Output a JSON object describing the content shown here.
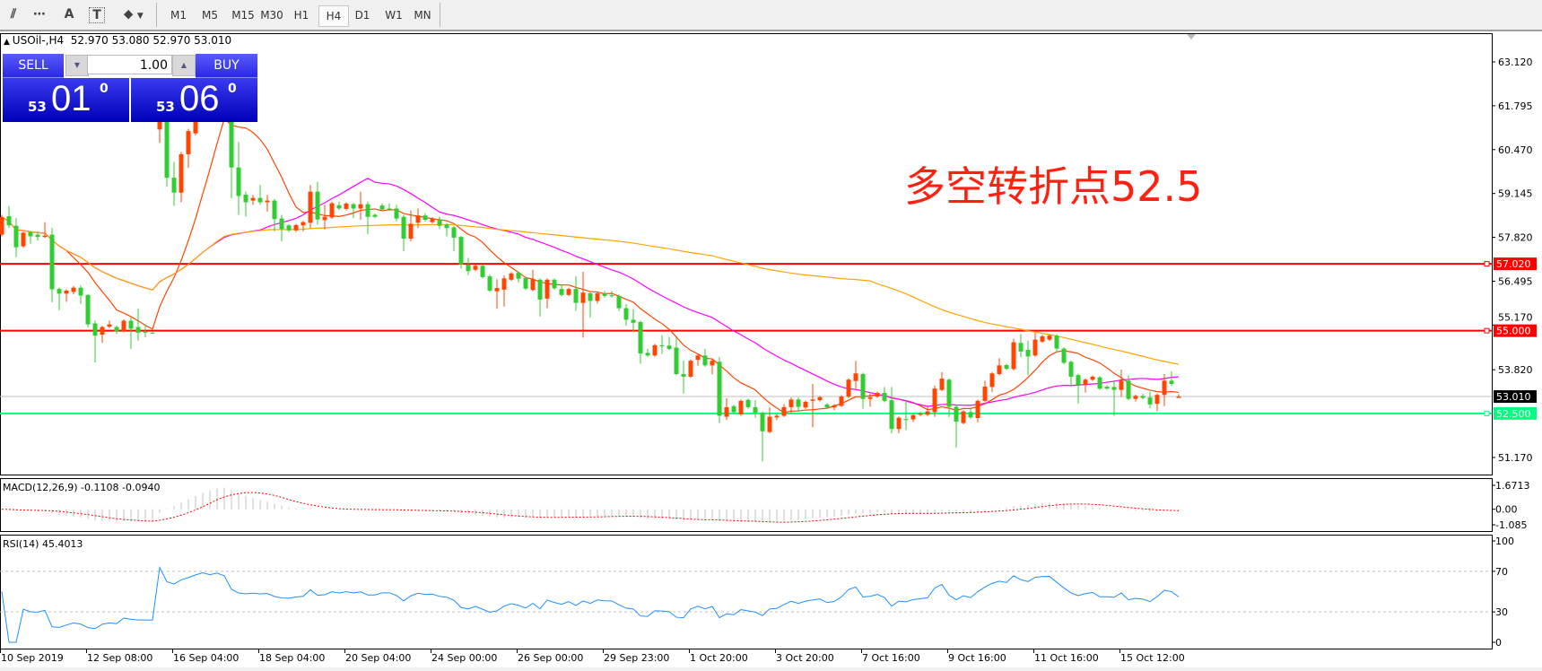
{
  "toolbar": {
    "icons": [
      "elliott-wave-icon",
      "fibonacci-fan-icon",
      "text-icon",
      "text-label-icon",
      "arrows-icon"
    ],
    "icon_glyphs": [
      "⫽",
      "⋯",
      "A",
      "T",
      "⬥"
    ],
    "timeframes": [
      "M1",
      "M5",
      "M15",
      "M30",
      "H1",
      "H4",
      "D1",
      "W1",
      "MN"
    ],
    "active_timeframe": "H4"
  },
  "header": {
    "symbol": "USOil-,H4",
    "ohlc": "52.970 53.080 52.970 53.010"
  },
  "trade_panel": {
    "sell_label": "SELL",
    "buy_label": "BUY",
    "lot": "1.00",
    "sell_price_small": "53",
    "sell_price_big": "01",
    "sell_price_sup": "0",
    "buy_price_small": "53",
    "buy_price_big": "06",
    "buy_price_sup": "0"
  },
  "annotation": "多空转折点52.5",
  "colors": {
    "bull": "#ff4500",
    "bear": "#32cd32",
    "ma_fast": "#ff4500",
    "ma_mid": "#ff00ff",
    "ma_slow": "#ffa500",
    "level_red": "#ff0000",
    "level_green": "#00ff7f",
    "current": "#c0c0c0",
    "macd_hist": "#c0c0c0",
    "macd_signal": "#ff0000",
    "rsi": "#1e90ff"
  },
  "chart_data": {
    "type": "candlestick",
    "symbol": "USOil-",
    "timeframe": "H4",
    "price_ticks": [
      "63.120",
      "61.795",
      "60.470",
      "59.145",
      "57.820",
      "56.495",
      "55.170",
      "53.820",
      "51.170"
    ],
    "ylim": [
      50.6,
      64.0
    ],
    "levels": [
      {
        "value": 57.02,
        "label": "57.020",
        "color": "#ff0000"
      },
      {
        "value": 55.0,
        "label": "55.000",
        "color": "#ff0000"
      },
      {
        "value": 52.5,
        "label": "52.500",
        "color": "#00ff7f"
      }
    ],
    "current_price": {
      "value": 53.01,
      "label": "53.010"
    },
    "date_labels": [
      "10 Sep 2019",
      "12 Sep 08:00",
      "16 Sep 04:00",
      "18 Sep 04:00",
      "20 Sep 04:00",
      "24 Sep 00:00",
      "26 Sep 00:00",
      "29 Sep 23:00",
      "1 Oct 20:00",
      "3 Oct 20:00",
      "7 Oct 16:00",
      "9 Oct 16:00",
      "11 Oct 16:00",
      "15 Oct 12:00"
    ],
    "candles_ohlc": [
      [
        57.9,
        58.5,
        57.85,
        58.43
      ],
      [
        58.46,
        58.76,
        58.1,
        58.18
      ],
      [
        58.17,
        58.4,
        57.22,
        57.52
      ],
      [
        57.55,
        57.99,
        57.5,
        57.96
      ],
      [
        57.98,
        58.0,
        57.63,
        57.85
      ],
      [
        57.9,
        58.0,
        57.72,
        57.83
      ],
      [
        57.83,
        58.28,
        57.8,
        57.87
      ],
      [
        57.9,
        58.1,
        55.86,
        56.25
      ],
      [
        56.26,
        56.3,
        55.62,
        56.12
      ],
      [
        56.12,
        56.25,
        55.87,
        56.21
      ],
      [
        56.17,
        56.35,
        56.1,
        56.3
      ],
      [
        56.3,
        56.37,
        55.81,
        56.06
      ],
      [
        56.08,
        56.1,
        55.1,
        55.19
      ],
      [
        55.22,
        55.3,
        54.04,
        54.85
      ],
      [
        54.88,
        55.15,
        54.63,
        55.11
      ],
      [
        55.12,
        55.3,
        55.08,
        55.19
      ],
      [
        55.11,
        55.15,
        54.9,
        54.98
      ],
      [
        54.98,
        55.35,
        54.95,
        55.3
      ],
      [
        55.3,
        55.4,
        54.45,
        55.06
      ],
      [
        55.11,
        55.67,
        54.7,
        54.94
      ],
      [
        54.97,
        55.2,
        54.8,
        54.94
      ],
      [
        54.94,
        54.98,
        54.9,
        54.93
      ],
      [
        61.08,
        62.0,
        60.67,
        61.9
      ],
      [
        61.9,
        62.4,
        59.35,
        59.62
      ],
      [
        59.62,
        60.1,
        58.77,
        59.17
      ],
      [
        59.17,
        60.4,
        58.88,
        60.33
      ],
      [
        60.33,
        61.1,
        59.92,
        61.03
      ],
      [
        60.96,
        62.0,
        60.9,
        61.9
      ],
      [
        61.9,
        63.0,
        61.8,
        62.6
      ],
      [
        62.6,
        62.9,
        62.0,
        62.3
      ],
      [
        62.3,
        62.95,
        62.2,
        62.8
      ],
      [
        62.8,
        62.9,
        62.2,
        62.4
      ],
      [
        62.4,
        62.5,
        59.0,
        59.93
      ],
      [
        59.93,
        60.7,
        58.5,
        59.07
      ],
      [
        59.11,
        59.2,
        58.45,
        58.88
      ],
      [
        58.93,
        59.1,
        58.8,
        59.01
      ],
      [
        59.01,
        59.4,
        58.8,
        58.88
      ],
      [
        58.88,
        59.1,
        58.6,
        58.93
      ],
      [
        58.93,
        58.98,
        58.0,
        58.37
      ],
      [
        58.39,
        58.5,
        57.7,
        58.07
      ],
      [
        58.18,
        58.22,
        57.98,
        58.03
      ],
      [
        58.03,
        58.22,
        57.98,
        58.19
      ],
      [
        58.18,
        58.32,
        58.0,
        58.28
      ],
      [
        58.26,
        59.4,
        58.1,
        59.2
      ],
      [
        59.2,
        59.5,
        58.2,
        58.36
      ],
      [
        58.34,
        58.8,
        58.06,
        58.44
      ],
      [
        58.42,
        58.9,
        58.38,
        58.85
      ],
      [
        58.79,
        58.9,
        58.65,
        58.69
      ],
      [
        58.68,
        58.88,
        58.64,
        58.84
      ],
      [
        58.82,
        58.86,
        58.4,
        58.69
      ],
      [
        58.69,
        59.2,
        58.35,
        58.82
      ],
      [
        58.82,
        58.9,
        57.92,
        58.44
      ],
      [
        58.5,
        58.54,
        58.4,
        58.44
      ],
      [
        58.78,
        58.85,
        58.62,
        58.66
      ],
      [
        58.69,
        58.85,
        58.62,
        58.66
      ],
      [
        58.69,
        58.8,
        58.3,
        58.39
      ],
      [
        58.44,
        58.5,
        57.4,
        57.78
      ],
      [
        57.78,
        58.63,
        57.7,
        58.23
      ],
      [
        58.26,
        58.69,
        58.1,
        58.48
      ],
      [
        58.48,
        58.55,
        58.3,
        58.35
      ],
      [
        58.28,
        58.43,
        58.24,
        58.39
      ],
      [
        58.36,
        58.45,
        58.07,
        58.17
      ],
      [
        58.21,
        58.25,
        57.85,
        58.1
      ],
      [
        58.12,
        58.16,
        57.4,
        57.81
      ],
      [
        57.83,
        57.87,
        56.87,
        57.0
      ],
      [
        57.0,
        57.2,
        56.68,
        56.8
      ],
      [
        56.84,
        57.0,
        56.8,
        56.96
      ],
      [
        56.96,
        57.0,
        56.58,
        56.62
      ],
      [
        56.64,
        56.7,
        56.17,
        56.21
      ],
      [
        56.19,
        56.55,
        55.66,
        56.29
      ],
      [
        56.24,
        56.67,
        55.73,
        56.58
      ],
      [
        56.54,
        56.77,
        56.5,
        56.73
      ],
      [
        56.75,
        56.79,
        56.46,
        56.57
      ],
      [
        56.59,
        56.63,
        56.23,
        56.27
      ],
      [
        56.23,
        56.84,
        56.19,
        56.55
      ],
      [
        56.54,
        56.58,
        55.43,
        55.94
      ],
      [
        55.97,
        56.58,
        55.68,
        56.54
      ],
      [
        56.54,
        56.58,
        56.24,
        56.28
      ],
      [
        56.26,
        56.4,
        56.04,
        56.08
      ],
      [
        56.08,
        56.3,
        56.04,
        56.26
      ],
      [
        56.26,
        56.65,
        55.6,
        55.84
      ],
      [
        55.84,
        56.78,
        54.79,
        56.15
      ],
      [
        56.13,
        56.17,
        55.4,
        55.9
      ],
      [
        55.9,
        56.17,
        55.82,
        56.13
      ],
      [
        56.13,
        56.2,
        56.0,
        56.05
      ],
      [
        56.07,
        56.2,
        56.0,
        56.04
      ],
      [
        56.05,
        56.09,
        55.6,
        55.68
      ],
      [
        55.68,
        55.8,
        55.15,
        55.33
      ],
      [
        55.33,
        55.65,
        54.95,
        55.24
      ],
      [
        55.26,
        55.3,
        54.0,
        54.31
      ],
      [
        54.33,
        54.45,
        54.21,
        54.25
      ],
      [
        54.25,
        54.6,
        54.21,
        54.56
      ],
      [
        54.56,
        54.86,
        54.3,
        54.53
      ],
      [
        54.55,
        54.81,
        54.41,
        54.45
      ],
      [
        54.49,
        54.8,
        53.65,
        53.69
      ],
      [
        53.69,
        54.1,
        53.1,
        53.61
      ],
      [
        53.61,
        54.13,
        53.57,
        54.09
      ],
      [
        54.12,
        54.29,
        53.94,
        54.25
      ],
      [
        54.25,
        54.45,
        53.91,
        53.95
      ],
      [
        53.95,
        54.13,
        53.68,
        54.09
      ],
      [
        54.06,
        54.2,
        52.21,
        52.43
      ],
      [
        52.4,
        52.96,
        52.3,
        52.69
      ],
      [
        52.72,
        52.76,
        52.5,
        52.54
      ],
      [
        52.47,
        52.92,
        52.43,
        52.88
      ],
      [
        52.91,
        52.95,
        52.65,
        52.69
      ],
      [
        52.69,
        52.9,
        52.37,
        52.52
      ],
      [
        52.52,
        52.56,
        51.05,
        51.96
      ],
      [
        51.94,
        52.69,
        51.9,
        52.4
      ],
      [
        52.38,
        52.47,
        52.3,
        52.43
      ],
      [
        52.43,
        52.78,
        52.39,
        52.69
      ],
      [
        52.69,
        52.98,
        52.5,
        52.92
      ],
      [
        52.92,
        52.98,
        52.55,
        52.7
      ],
      [
        52.68,
        52.89,
        52.64,
        52.85
      ],
      [
        52.88,
        53.39,
        52.08,
        52.92
      ],
      [
        52.9,
        53.03,
        52.86,
        52.99
      ],
      [
        52.77,
        52.81,
        52.64,
        52.68
      ],
      [
        52.68,
        52.78,
        52.6,
        52.74
      ],
      [
        52.73,
        53.05,
        52.69,
        53.01
      ],
      [
        53.01,
        53.56,
        52.96,
        53.52
      ],
      [
        53.48,
        54.09,
        53.26,
        53.71
      ],
      [
        53.69,
        53.73,
        52.64,
        52.94
      ],
      [
        52.94,
        53.1,
        52.7,
        52.99
      ],
      [
        53.01,
        53.16,
        52.97,
        53.12
      ],
      [
        53.12,
        53.3,
        52.84,
        52.88
      ],
      [
        52.9,
        53.3,
        51.9,
        52.03
      ],
      [
        52.03,
        52.41,
        51.9,
        52.37
      ],
      [
        52.33,
        52.9,
        52.0,
        52.3
      ],
      [
        52.32,
        52.49,
        52.24,
        52.45
      ],
      [
        52.46,
        52.54,
        52.42,
        52.5
      ],
      [
        52.46,
        52.7,
        52.42,
        52.56
      ],
      [
        52.54,
        53.34,
        52.4,
        53.25
      ],
      [
        53.21,
        53.75,
        53.17,
        53.55
      ],
      [
        53.52,
        53.56,
        52.4,
        52.7
      ],
      [
        52.7,
        52.77,
        51.47,
        52.25
      ],
      [
        52.21,
        52.6,
        52.17,
        52.56
      ],
      [
        52.54,
        52.65,
        52.34,
        52.38
      ],
      [
        52.36,
        52.92,
        52.23,
        52.88
      ],
      [
        52.88,
        53.49,
        52.84,
        53.31
      ],
      [
        53.3,
        53.75,
        53.15,
        53.71
      ],
      [
        53.69,
        54.17,
        53.65,
        53.95
      ],
      [
        53.96,
        54.0,
        53.81,
        53.85
      ],
      [
        53.84,
        54.76,
        53.8,
        54.65
      ],
      [
        54.63,
        54.9,
        54.2,
        54.37
      ],
      [
        54.42,
        54.7,
        53.66,
        54.22
      ],
      [
        54.25,
        54.94,
        54.21,
        54.73
      ],
      [
        54.67,
        54.87,
        54.63,
        54.83
      ],
      [
        54.73,
        54.89,
        54.69,
        54.85
      ],
      [
        54.85,
        54.89,
        54.33,
        54.46
      ],
      [
        54.46,
        54.5,
        53.99,
        54.03
      ],
      [
        54.06,
        54.1,
        53.3,
        53.61
      ],
      [
        53.66,
        53.7,
        52.8,
        53.36
      ],
      [
        53.36,
        53.56,
        53.13,
        53.52
      ],
      [
        53.52,
        53.65,
        53.48,
        53.61
      ],
      [
        53.59,
        53.63,
        53.21,
        53.25
      ],
      [
        53.31,
        53.35,
        53.21,
        53.25
      ],
      [
        53.3,
        53.5,
        52.43,
        53.21
      ],
      [
        53.21,
        53.82,
        53.0,
        53.49
      ],
      [
        53.49,
        53.65,
        52.9,
        52.94
      ],
      [
        52.94,
        53.07,
        52.86,
        53.03
      ],
      [
        53.03,
        53.1,
        52.93,
        52.97
      ],
      [
        52.98,
        53.16,
        52.66,
        52.77
      ],
      [
        52.79,
        53.1,
        52.57,
        53.06
      ],
      [
        53.06,
        53.69,
        52.72,
        53.49
      ],
      [
        53.49,
        53.77,
        53.33,
        53.39
      ],
      [
        52.97,
        53.08,
        52.97,
        53.01
      ]
    ],
    "macd": {
      "label": "MACD(12,26,9) -0.1108 -0.0940",
      "ticks": [
        "1.6713",
        "0.00",
        "-1.085"
      ],
      "range": [
        -1.085,
        1.6713
      ]
    },
    "rsi": {
      "label": "RSI(14) 45.4013",
      "ticks": [
        "100",
        "70",
        "30",
        "0"
      ],
      "levels": [
        70,
        30
      ],
      "range": [
        0,
        100
      ]
    }
  }
}
